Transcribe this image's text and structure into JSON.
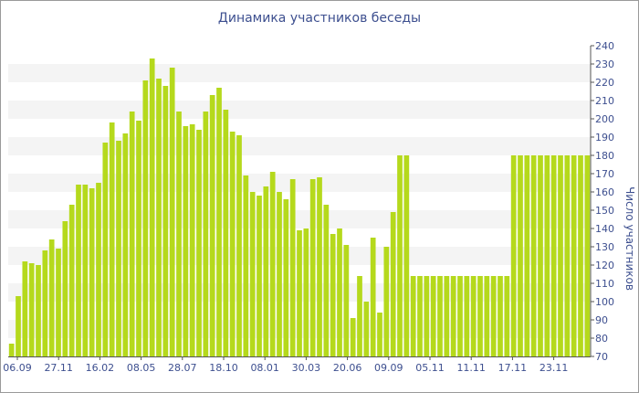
{
  "chart_data": {
    "type": "bar",
    "title": "Динамика участников беседы",
    "ylabel": "Число участников",
    "xlabel": "",
    "ylim": [
      70,
      240
    ],
    "yticks": [
      70,
      80,
      90,
      100,
      110,
      120,
      130,
      140,
      150,
      160,
      170,
      180,
      190,
      200,
      210,
      220,
      230,
      240
    ],
    "xtick_labels": [
      "06.09",
      "27.11",
      "16.02",
      "08.05",
      "28.07",
      "18.10",
      "08.01",
      "30.03",
      "20.06",
      "09.09",
      "05.11",
      "11.11",
      "17.11",
      "23.11"
    ],
    "grid": "horizontal bands",
    "legend": "none",
    "colors": {
      "bar": "#b5d91c",
      "band": "#f4f4f4",
      "text": "#3d4f8f",
      "axis": "#555555"
    },
    "values": [
      77,
      103,
      122,
      121,
      120,
      128,
      134,
      129,
      144,
      153,
      164,
      164,
      162,
      165,
      187,
      198,
      188,
      192,
      204,
      199,
      221,
      233,
      222,
      218,
      228,
      204,
      196,
      197,
      194,
      204,
      213,
      217,
      205,
      193,
      191,
      169,
      160,
      158,
      163,
      171,
      160,
      156,
      167,
      139,
      140,
      167,
      168,
      153,
      137,
      140,
      131,
      91,
      114,
      100,
      135,
      94,
      130,
      149,
      180,
      180,
      114,
      114,
      114,
      114,
      114,
      114,
      114,
      114,
      114,
      114,
      114,
      114,
      114,
      114,
      114,
      180,
      180,
      180,
      180,
      180,
      180,
      180,
      180,
      180,
      180,
      180,
      180
    ]
  }
}
